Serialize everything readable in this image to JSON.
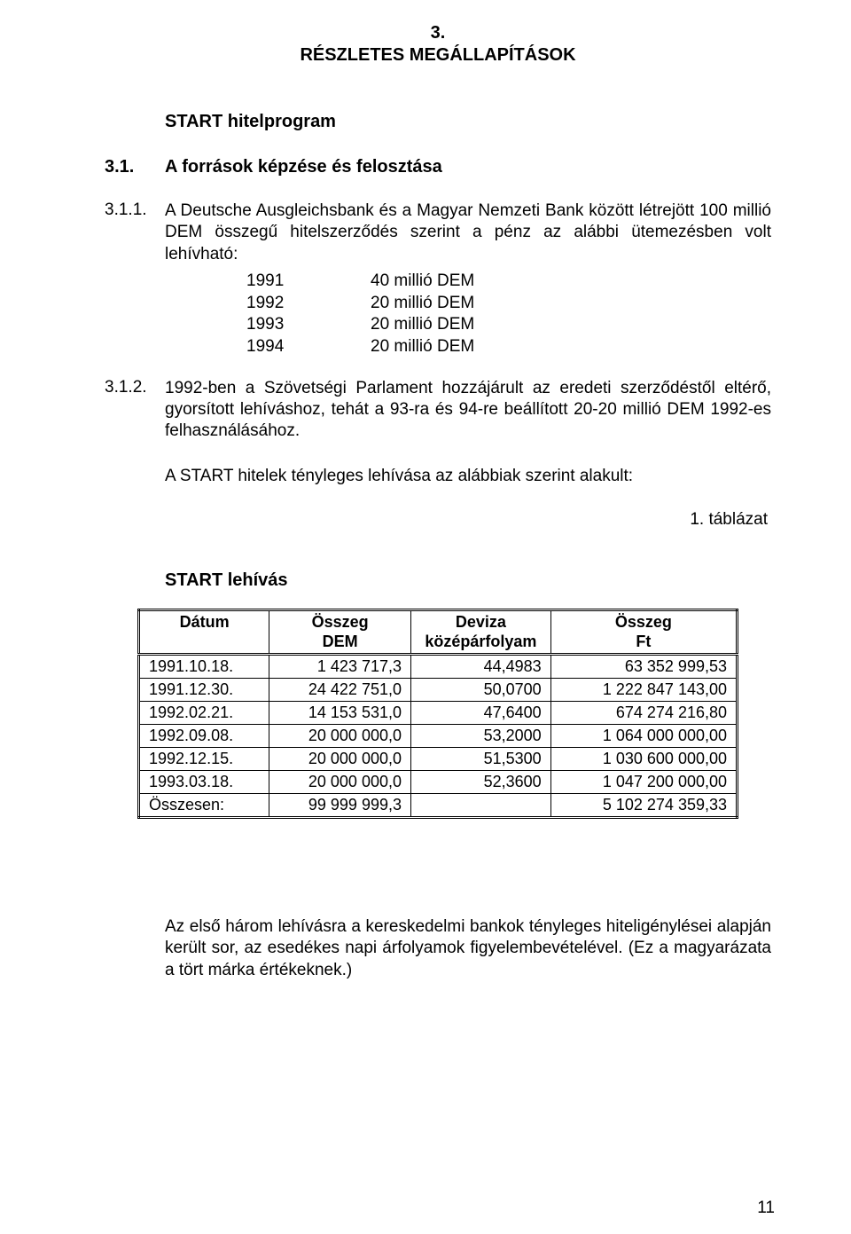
{
  "chapter": {
    "number": "3.",
    "title": "RÉSZLETES MEGÁLLAPÍTÁSOK"
  },
  "program_subtitle": "START hitelprogram",
  "section_3_1": {
    "number": "3.1.",
    "title": "A források képzése és felosztása"
  },
  "para_3_1_1": {
    "number": "3.1.1.",
    "text": "A Deutsche Ausgleichsbank és a Magyar Nemzeti Bank között létrejött 100 millió DEM összegű hitelszerződés szerint a pénz az alábbi ütemezésben volt lehívható:",
    "schedule": {
      "rows": [
        {
          "year": "1991",
          "amount": "40 millió DEM"
        },
        {
          "year": "1992",
          "amount": "20 millió DEM"
        },
        {
          "year": "1993",
          "amount": "20 millió DEM"
        },
        {
          "year": "1994",
          "amount": "20 millió DEM"
        }
      ]
    }
  },
  "para_3_1_2": {
    "number": "3.1.2.",
    "text": "1992-ben a Szövetségi Parlament hozzájárult az eredeti szerződéstől eltérő, gyorsított lehíváshoz, tehát a 93-ra és 94-re beállított 20-20 millió DEM 1992-es felhasználásához.",
    "text2": "A START hitelek tényleges lehívása az alábbiak szerint alakult:"
  },
  "table": {
    "caption": "1. táblázat",
    "title": "START lehívás",
    "columns": {
      "c1": "Dátum",
      "c2_line1": "Összeg",
      "c2_line2": "DEM",
      "c3_line1": "Deviza",
      "c3_line2": "középárfolyam",
      "c4_line1": "Összeg",
      "c4_line2": "Ft"
    },
    "rows": [
      {
        "date": "1991.10.18.",
        "dem": "1 423 717,3",
        "rate": "44,4983",
        "ft": "63 352 999,53"
      },
      {
        "date": "1991.12.30.",
        "dem": "24 422 751,0",
        "rate": "50,0700",
        "ft": "1 222 847 143,00"
      },
      {
        "date": "1992.02.21.",
        "dem": "14 153 531,0",
        "rate": "47,6400",
        "ft": "674 274 216,80"
      },
      {
        "date": "1992.09.08.",
        "dem": "20 000 000,0",
        "rate": "53,2000",
        "ft": "1 064 000 000,00"
      },
      {
        "date": "1992.12.15.",
        "dem": "20 000 000,0",
        "rate": "51,5300",
        "ft": "1 030 600 000,00"
      },
      {
        "date": "1993.03.18.",
        "dem": "20 000 000,0",
        "rate": "52,3600",
        "ft": "1 047 200 000,00"
      },
      {
        "date": "Összesen:",
        "dem": "99 999 999,3",
        "rate": "",
        "ft": "5 102 274 359,33"
      }
    ]
  },
  "bottom_paragraph": "Az első három lehívásra a kereskedelmi bankok tényleges hiteligénylései alapján került sor, az esedékes napi árfolyamok figyelembevételével. (Ez a magyarázata a tört márka értékeknek.)",
  "page_number": "11"
}
